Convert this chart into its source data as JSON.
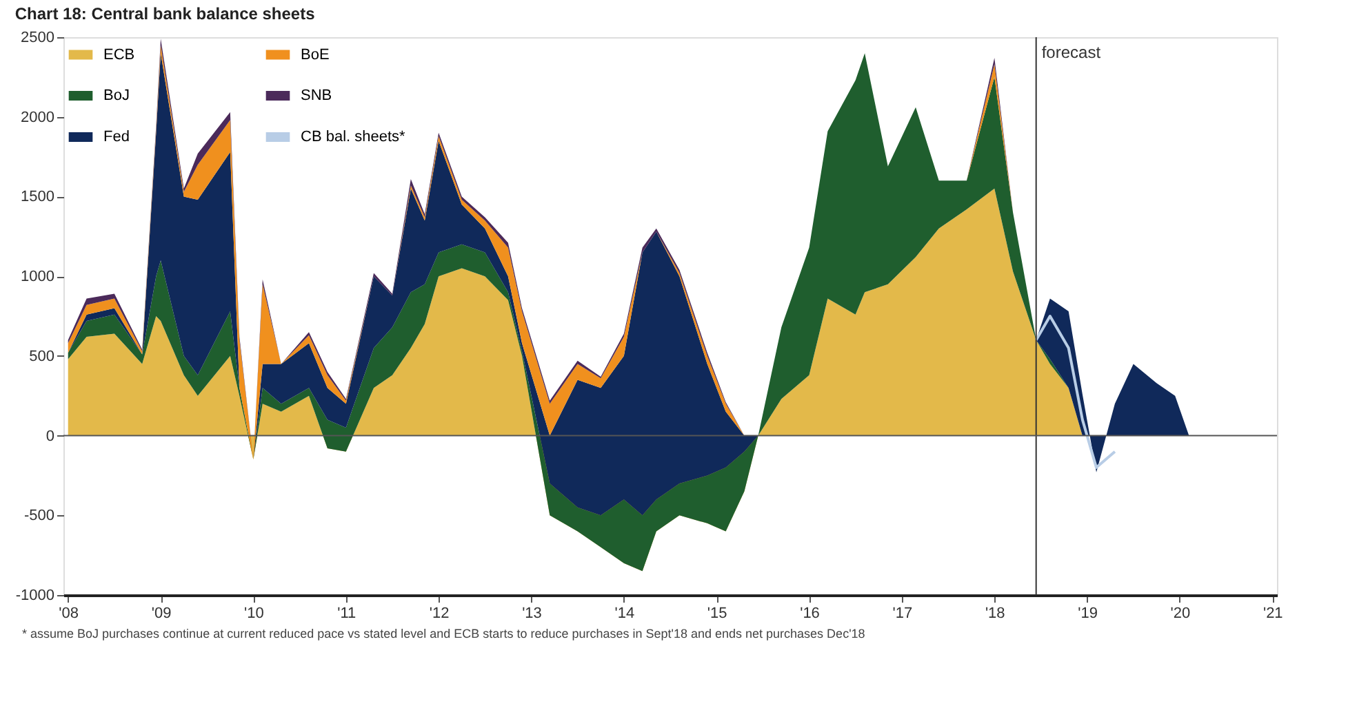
{
  "chart_data": {
    "type": "area",
    "stacked": true,
    "title": "Chart 18: Central bank balance sheets",
    "x": [
      2008.0,
      2008.2,
      2008.5,
      2008.8,
      2008.95,
      2009.0,
      2009.25,
      2009.4,
      2009.75,
      2009.85,
      2010.0,
      2010.1,
      2010.3,
      2010.6,
      2010.8,
      2011.0,
      2011.3,
      2011.5,
      2011.7,
      2011.85,
      2012.0,
      2012.25,
      2012.5,
      2012.75,
      2012.9,
      2013.2,
      2013.5,
      2013.75,
      2014.0,
      2014.2,
      2014.35,
      2014.6,
      2014.9,
      2015.1,
      2015.3,
      2015.45,
      2015.7,
      2016.0,
      2016.2,
      2016.5,
      2016.6,
      2016.85,
      2017.15,
      2017.4,
      2017.7,
      2018.0,
      2018.2,
      2018.45,
      2018.6,
      2018.8,
      2018.95,
      2019.1,
      2019.3,
      2019.5,
      2019.75,
      2019.95,
      2020.1
    ],
    "series": [
      {
        "name": "ECB",
        "color": "#e3b94a",
        "values": [
          480,
          620,
          640,
          450,
          750,
          720,
          380,
          250,
          500,
          250,
          -150,
          200,
          150,
          250,
          -80,
          -100,
          300,
          380,
          550,
          700,
          1000,
          1050,
          1000,
          850,
          500,
          -500,
          -600,
          -700,
          -800,
          -850,
          -600,
          -500,
          -550,
          -600,
          -350,
          0,
          230,
          380,
          860,
          760,
          900,
          950,
          1120,
          1300,
          1420,
          1550,
          1030,
          600,
          450,
          300,
          0,
          0,
          0,
          0,
          0,
          0,
          0
        ]
      },
      {
        "name": "BoJ",
        "color": "#1f5e2e",
        "values": [
          40,
          100,
          120,
          60,
          250,
          380,
          120,
          130,
          280,
          50,
          0,
          100,
          50,
          50,
          180,
          150,
          250,
          300,
          350,
          250,
          150,
          150,
          150,
          50,
          30,
          200,
          150,
          200,
          400,
          350,
          200,
          200,
          300,
          400,
          250,
          0,
          450,
          800,
          1050,
          1470,
          1500,
          740,
          940,
          300,
          180,
          700,
          370,
          0,
          30,
          0,
          0,
          0,
          0,
          0,
          0,
          0,
          0
        ]
      },
      {
        "name": "Fed",
        "color": "#10295a",
        "values": [
          0,
          40,
          40,
          0,
          900,
          1300,
          1000,
          1100,
          1000,
          0,
          0,
          150,
          250,
          280,
          200,
          150,
          450,
          200,
          650,
          400,
          700,
          250,
          150,
          100,
          50,
          300,
          800,
          800,
          900,
          1650,
          1680,
          1300,
          700,
          350,
          100,
          0,
          0,
          0,
          0,
          0,
          0,
          0,
          0,
          0,
          0,
          0,
          0,
          0,
          380,
          480,
          260,
          -230,
          200,
          450,
          330,
          250,
          0
        ]
      },
      {
        "name": "BoE",
        "color": "#f0901e",
        "values": [
          60,
          60,
          60,
          20,
          20,
          50,
          30,
          220,
          200,
          300,
          0,
          500,
          0,
          50,
          80,
          20,
          0,
          0,
          20,
          20,
          30,
          30,
          50,
          180,
          200,
          200,
          100,
          60,
          120,
          0,
          0,
          20,
          50,
          50,
          0,
          0,
          0,
          0,
          0,
          0,
          0,
          0,
          0,
          0,
          0,
          80,
          0,
          0,
          0,
          0,
          0,
          0,
          0,
          0,
          0,
          0,
          0
        ]
      },
      {
        "name": "SNB",
        "color": "#4b2a5a",
        "values": [
          20,
          40,
          30,
          10,
          20,
          40,
          20,
          70,
          50,
          20,
          0,
          30,
          0,
          20,
          20,
          10,
          20,
          10,
          40,
          20,
          20,
          20,
          20,
          30,
          20,
          20,
          20,
          10,
          20,
          30,
          20,
          20,
          20,
          10,
          0,
          0,
          0,
          0,
          0,
          0,
          0,
          0,
          0,
          0,
          0,
          40,
          0,
          0,
          0,
          0,
          0,
          0,
          0,
          0,
          0,
          0,
          0
        ]
      },
      {
        "name": "CB bal. sheets*",
        "type": "line",
        "color": "#b8cde6",
        "x": [
          2018.45,
          2018.6,
          2018.8,
          2018.95,
          2019.1,
          2019.3
        ],
        "values": [
          600,
          750,
          550,
          100,
          -200,
          -100
        ]
      }
    ],
    "xlim": [
      2007.95,
      2021.05
    ],
    "xticks": [
      {
        "value": 2008,
        "label": "'08"
      },
      {
        "value": 2009,
        "label": "'09"
      },
      {
        "value": 2010,
        "label": "'10"
      },
      {
        "value": 2011,
        "label": "'11"
      },
      {
        "value": 2012,
        "label": "'12"
      },
      {
        "value": 2013,
        "label": "'13"
      },
      {
        "value": 2014,
        "label": "'14"
      },
      {
        "value": 2015,
        "label": "'15"
      },
      {
        "value": 2016,
        "label": "'16"
      },
      {
        "value": 2017,
        "label": "'17"
      },
      {
        "value": 2018,
        "label": "'18"
      },
      {
        "value": 2019,
        "label": "'19"
      },
      {
        "value": 2020,
        "label": "'20"
      },
      {
        "value": 2021,
        "label": "'21"
      }
    ],
    "ylim": [
      -1000,
      2500
    ],
    "yticks": [
      -1000,
      -500,
      0,
      500,
      1000,
      1500,
      2000,
      2500
    ],
    "ref_lines": [
      {
        "axis": "x",
        "value": 2018.45,
        "label": "forecast",
        "color": "#333333"
      },
      {
        "axis": "y",
        "value": 0,
        "color": "#555555"
      }
    ],
    "legend": "top left",
    "grid": false,
    "annotations": [
      "* assume BoJ purchases continue at current reduced pace vs stated level and ECB starts to reduce purchases in Sept'18 and ends net purchases Dec'18"
    ]
  }
}
